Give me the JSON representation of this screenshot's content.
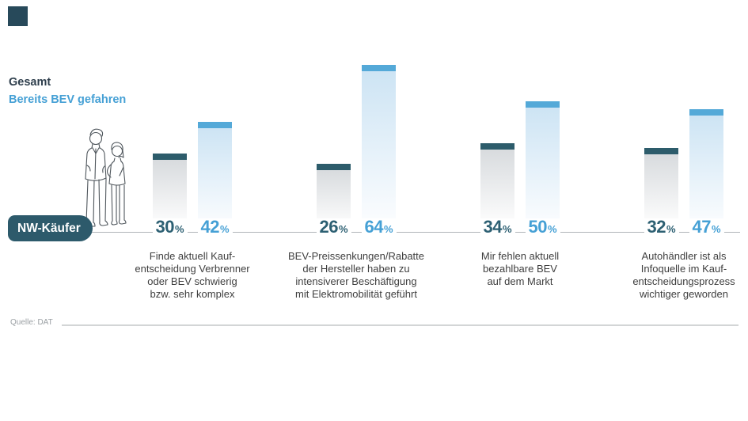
{
  "brand": {
    "mark_color": "#27495A"
  },
  "legend": {
    "items": [
      {
        "label": "Gesamt",
        "color": "#2E3E4C"
      },
      {
        "label": "Bereits BEV gefahren",
        "color": "#45A0D5"
      }
    ]
  },
  "badge": {
    "label": "NW-Käufer",
    "bg": "#2D5A6B",
    "text_color": "#FFFFFF"
  },
  "illustration": {
    "name": "two-people-line-art",
    "stroke_color": "#4F565C"
  },
  "source": {
    "label": "Quelle: DAT"
  },
  "chart_data": {
    "type": "bar",
    "unit": "%",
    "title": "",
    "legend_position": "top-left",
    "grid": false,
    "y_axis_visible": false,
    "ylim": [
      0,
      88
    ],
    "baseline_color": "#B0B5B9",
    "categories": [
      {
        "lines": [
          "Finde aktuell Kauf-",
          "entscheidung Verbrenner",
          "oder BEV schwierig",
          "bzw. sehr komplex"
        ]
      },
      {
        "lines": [
          "BEV-Preissenkungen/Rabatte",
          "der Hersteller haben zu",
          "intensiverer Beschäftigung",
          "mit Elektromobilität geführt"
        ]
      },
      {
        "lines": [
          "Mir fehlen aktuell",
          "bezahlbare BEV",
          "auf dem Markt"
        ]
      },
      {
        "lines": [
          "Autohändler ist als",
          "Infoquelle im Kauf-",
          "entscheidungsprozess",
          "wichtiger geworden"
        ]
      }
    ],
    "series": [
      {
        "name": "Gesamt",
        "values": [
          30,
          26,
          34,
          32
        ],
        "cap_color": "#2D5C6B",
        "label_color": "#2D6073",
        "body_top": "#D8DBDE",
        "body_bottom": "#FEFEFE"
      },
      {
        "name": "Bereits BEV gefahren",
        "values": [
          42,
          64,
          50,
          47
        ],
        "cap_color": "#54A9D8",
        "label_color": "#45A0D5",
        "body_top": "#CDE4F4",
        "body_bottom": "#FAFCFE"
      }
    ]
  }
}
